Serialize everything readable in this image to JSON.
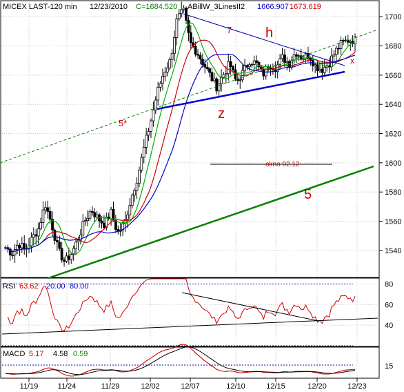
{
  "header": {
    "symbol": "MICEX LAST-120 min",
    "date": "12/23/2010",
    "close_label": "C=1684.520",
    "study": "ABillW_3LinesII2",
    "study_value_1": "1666.907",
    "study_value_2": "1673.619"
  },
  "colors": {
    "price": "#000000",
    "ma_green": "#00b000",
    "ma_red": "#cc0000",
    "ma_blue": "#0000cc",
    "channel_blue": "#0000cc",
    "trend_green": "#008000",
    "dashed_green": "#008000",
    "annotation_red": "#cc0000",
    "rsi_line": "#cc0000",
    "macd_line": "#cc0000",
    "grid": "#c8c8c8"
  },
  "annotations": {
    "h": "h",
    "z": "z",
    "seven": "7",
    "five_star": "5*",
    "five": "5",
    "x_mark": "x",
    "okno": "okno 02.12"
  },
  "chart_data": [
    {
      "type": "candlestick",
      "name": "price",
      "ylim": [
        1522,
        1710
      ],
      "yticks": [
        1540,
        1560,
        1580,
        1600,
        1620,
        1640,
        1660,
        1680,
        1700
      ],
      "xticks": [
        "11/19",
        "11/24",
        "11/29",
        "12/02",
        "12/07",
        "12/10",
        "12/15",
        "12/20",
        "12/23"
      ],
      "grid": true,
      "close_path": [
        1542,
        1538,
        1545,
        1540,
        1548,
        1555,
        1572,
        1558,
        1540,
        1532,
        1538,
        1548,
        1560,
        1568,
        1562,
        1558,
        1566,
        1552,
        1558,
        1575,
        1590,
        1610,
        1628,
        1648,
        1662,
        1670,
        1698,
        1704,
        1682,
        1676,
        1668,
        1660,
        1652,
        1660,
        1668,
        1655,
        1662,
        1670,
        1668,
        1660,
        1668,
        1665,
        1672,
        1668,
        1676,
        1672,
        1674,
        1666,
        1664,
        1668,
        1676,
        1682,
        1684,
        1684
      ]
    },
    {
      "type": "line",
      "name": "RSI",
      "label": "RSI",
      "values_header": [
        "63.62",
        "20.00",
        "80.00"
      ],
      "ylim": [
        20,
        85
      ],
      "yticks": [
        40,
        60,
        80
      ],
      "levels": [
        20,
        80
      ]
    },
    {
      "type": "line",
      "name": "MACD",
      "label": "MACD",
      "values_header": [
        "5.17",
        "4.58",
        "0.59"
      ],
      "yticks": [
        15
      ]
    }
  ]
}
